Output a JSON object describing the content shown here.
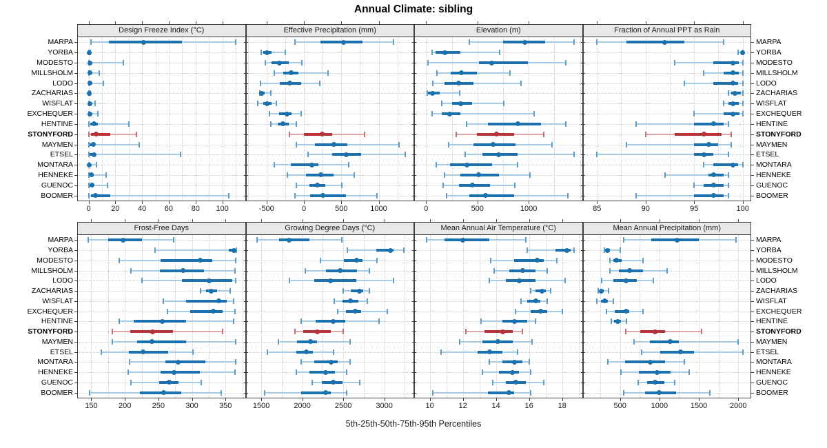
{
  "title": "Annual Climate: sibling",
  "caption": "5th-25th-50th-75th-95th Percentiles",
  "chart_data": {
    "type": "dotplot",
    "subtype": "trellis-percentile-interval-plot",
    "percentiles": [
      "5th",
      "25th",
      "50th",
      "75th",
      "95th"
    ],
    "stations": [
      "MARPA",
      "YORBA",
      "MODESTO",
      "MILLSHOLM",
      "LODO",
      "ZACHARIAS",
      "WISFLAT",
      "EXCHEQUER",
      "HENTINE",
      "STONYFORD",
      "MAYMEN",
      "ETSEL",
      "MONTARA",
      "HENNEKE",
      "GUENOC",
      "BOOMER"
    ],
    "highlight_station": "STONYFORD",
    "legend_position": "none",
    "grid": "dotted",
    "colors": {
      "series": "#1b71ad",
      "series_light": "#a9cbe4",
      "series_mid": "#5f9dc9",
      "highlight": "#b73337",
      "highlight_light": "#dda5a7",
      "highlight_mid": "#c66f72",
      "grid": "#c9c9c9",
      "panel_border": "#3f3f3f",
      "strip_bg": "#e8e8e8",
      "tick": "#3f3f3f",
      "text": "#1a1a1a"
    },
    "panels": [
      {
        "title": "Design Freeze Index (°C)",
        "grid_row": 0,
        "xlim": [
          -8,
          117
        ],
        "ticks": [
          0,
          20,
          40,
          60,
          80,
          100
        ],
        "minor_step": 10,
        "values": [
          [
            2,
            15,
            41,
            70,
            110
          ],
          [
            0,
            0,
            0.3,
            0.6,
            1.2
          ],
          [
            0,
            0.5,
            1,
            2.5,
            26
          ],
          [
            0,
            0.5,
            1,
            2.5,
            8
          ],
          [
            0,
            0.5,
            1,
            2,
            11
          ],
          [
            0,
            0,
            0.3,
            0.6,
            1.2
          ],
          [
            0,
            0.3,
            0.8,
            1.5,
            5
          ],
          [
            0,
            0.5,
            1,
            2,
            7
          ],
          [
            0.5,
            1.5,
            4,
            7,
            30
          ],
          [
            0.5,
            2,
            5.5,
            16,
            36
          ],
          [
            0.5,
            1,
            3.5,
            5,
            38
          ],
          [
            0.5,
            1,
            4,
            5.5,
            69
          ],
          [
            0,
            0,
            0.5,
            1.5,
            6
          ],
          [
            0,
            1,
            2,
            4,
            13
          ],
          [
            0,
            1,
            2.5,
            4,
            14
          ],
          [
            0.5,
            2,
            5,
            16,
            105
          ]
        ]
      },
      {
        "title": "Effective Precipitation (mm)",
        "grid_row": 0,
        "xlim": [
          -770,
          1465
        ],
        "ticks": [
          -500,
          0,
          500,
          1000
        ],
        "minor_step": 250,
        "values": [
          [
            -120,
            220,
            530,
            780,
            1200
          ],
          [
            -570,
            -540,
            -490,
            -430,
            -250
          ],
          [
            -520,
            -430,
            -330,
            -200,
            -30
          ],
          [
            -400,
            -280,
            -170,
            -70,
            320
          ],
          [
            -580,
            -325,
            -190,
            -40,
            210
          ],
          [
            -590,
            -575,
            -565,
            -530,
            -440
          ],
          [
            -620,
            -540,
            -490,
            -430,
            -370
          ],
          [
            -460,
            -335,
            -225,
            -165,
            -35
          ],
          [
            -440,
            -355,
            -285,
            -205,
            -105
          ],
          [
            -195,
            0,
            240,
            375,
            810
          ],
          [
            -105,
            145,
            400,
            580,
            1270
          ],
          [
            55,
            375,
            565,
            765,
            1350
          ],
          [
            -400,
            -175,
            110,
            190,
            600
          ],
          [
            -220,
            30,
            225,
            395,
            670
          ],
          [
            -100,
            70,
            175,
            285,
            510
          ],
          [
            -120,
            85,
            255,
            560,
            975
          ]
        ]
      },
      {
        "title": "Elevation (m)",
        "grid_row": 0,
        "xlim": [
          -110,
          1520
        ],
        "ticks": [
          0,
          500,
          1000
        ],
        "minor_step": 250,
        "values": [
          [
            420,
            750,
            960,
            1160,
            1445
          ],
          [
            60,
            90,
            180,
            335,
            720
          ],
          [
            15,
            515,
            640,
            990,
            1365
          ],
          [
            105,
            240,
            345,
            495,
            815
          ],
          [
            65,
            180,
            315,
            460,
            925
          ],
          [
            10,
            20,
            60,
            130,
            325
          ],
          [
            150,
            255,
            340,
            445,
            760
          ],
          [
            60,
            155,
            230,
            335,
            1050
          ],
          [
            395,
            605,
            895,
            1120,
            1365
          ],
          [
            290,
            495,
            685,
            855,
            1145
          ],
          [
            220,
            460,
            650,
            870,
            1225
          ],
          [
            380,
            550,
            710,
            890,
            1440
          ],
          [
            95,
            230,
            395,
            640,
            890
          ],
          [
            180,
            335,
            510,
            710,
            1010
          ],
          [
            165,
            320,
            450,
            620,
            865
          ],
          [
            200,
            420,
            580,
            855,
            1385
          ]
        ]
      },
      {
        "title": "Fraction of Annual PPT as Rain",
        "grid_row": 0,
        "xlim": [
          83.6,
          100.8
        ],
        "ticks": [
          85,
          90,
          95,
          100
        ],
        "minor_step": 2.5,
        "values": [
          [
            85,
            88,
            92,
            94,
            98
          ],
          [
            99.5,
            99.8,
            100,
            100,
            100
          ],
          [
            93,
            97,
            99,
            99.6,
            100
          ],
          [
            96,
            98,
            99,
            99.6,
            100
          ],
          [
            94,
            97,
            99,
            99.5,
            100
          ],
          [
            98.5,
            98.8,
            99.2,
            99.8,
            100
          ],
          [
            98,
            98.5,
            99,
            99.6,
            100
          ],
          [
            95,
            98,
            99,
            99.7,
            100
          ],
          [
            89,
            95,
            97,
            98,
            98.5
          ],
          [
            90,
            93,
            96,
            97.8,
            98.8
          ],
          [
            88,
            95,
            96.5,
            97.5,
            98.8
          ],
          [
            85,
            95,
            96,
            97,
            98.5
          ],
          [
            96,
            97,
            99,
            99.5,
            100
          ],
          [
            92,
            96.5,
            97,
            98,
            98.5
          ],
          [
            95,
            96,
            97,
            98,
            98.5
          ],
          [
            89,
            95,
            97,
            98,
            98.5
          ]
        ]
      },
      {
        "title": "Frost-Free Days",
        "grid_row": 1,
        "xlim": [
          130,
          379
        ],
        "ticks": [
          150,
          200,
          250,
          300,
          350
        ],
        "minor_step": 25,
        "values": [
          [
            145,
            175,
            197,
            225,
            273
          ],
          [
            245,
            355,
            363,
            365,
            366
          ],
          [
            192,
            253,
            312,
            330,
            365
          ],
          [
            209,
            252,
            287,
            318,
            364
          ],
          [
            225,
            285,
            326,
            360,
            365
          ],
          [
            313,
            321,
            329,
            337,
            357
          ],
          [
            257,
            291,
            340,
            352,
            362
          ],
          [
            263,
            297,
            332,
            346,
            364
          ],
          [
            192,
            213,
            256,
            291,
            362
          ],
          [
            181,
            208,
            241,
            272,
            346
          ],
          [
            181,
            218,
            240,
            291,
            365
          ],
          [
            165,
            206,
            227,
            265,
            301
          ],
          [
            207,
            260,
            279,
            320,
            365
          ],
          [
            205,
            253,
            273,
            312,
            364
          ],
          [
            209,
            251,
            266,
            280,
            314
          ],
          [
            147,
            222,
            258,
            284,
            344
          ]
        ]
      },
      {
        "title": "Growing Degree Days (°C)",
        "grid_row": 1,
        "xlim": [
          1318,
          3356
        ],
        "ticks": [
          1500,
          2000,
          2500,
          3000
        ],
        "minor_step": 250,
        "values": [
          [
            1450,
            1715,
            1840,
            2090,
            2485
          ],
          [
            2545,
            2900,
            3075,
            3110,
            3240
          ],
          [
            2220,
            2510,
            2665,
            2735,
            2910
          ],
          [
            2035,
            2285,
            2465,
            2665,
            2815
          ],
          [
            1840,
            2145,
            2340,
            2660,
            3115
          ],
          [
            2495,
            2590,
            2695,
            2740,
            2815
          ],
          [
            2390,
            2490,
            2590,
            2685,
            2790
          ],
          [
            2430,
            2530,
            2645,
            2715,
            3040
          ],
          [
            1990,
            2160,
            2375,
            2520,
            2935
          ],
          [
            1910,
            2010,
            2185,
            2345,
            2500
          ],
          [
            1705,
            1935,
            2100,
            2180,
            2585
          ],
          [
            1575,
            1925,
            2045,
            2125,
            2380
          ],
          [
            1990,
            2145,
            2355,
            2435,
            2585
          ],
          [
            1925,
            2090,
            2285,
            2395,
            2540
          ],
          [
            2120,
            2240,
            2380,
            2490,
            2700
          ],
          [
            1540,
            1990,
            2285,
            2345,
            2540
          ]
        ]
      },
      {
        "title": "Mean Annual Air Temperature (°C)",
        "grid_row": 1,
        "xlim": [
          9.1,
          19.2
        ],
        "ticks": [
          10,
          12,
          14,
          16,
          18
        ],
        "minor_step": 1,
        "values": [
          [
            9.8,
            10.9,
            12.0,
            13.6,
            15.8
          ],
          [
            15.9,
            17.6,
            18.3,
            18.5,
            18.7
          ],
          [
            13.7,
            15.1,
            16.5,
            16.9,
            17.7
          ],
          [
            13.9,
            14.8,
            15.6,
            16.4,
            17.1
          ],
          [
            13.6,
            14.6,
            15.4,
            16.4,
            18.2
          ],
          [
            16.1,
            16.4,
            16.8,
            17.0,
            17.3
          ],
          [
            15.5,
            15.9,
            16.4,
            16.7,
            17.1
          ],
          [
            15.2,
            16.1,
            16.7,
            17.1,
            18.0
          ],
          [
            13.1,
            14.4,
            15.1,
            15.9,
            16.4
          ],
          [
            12.2,
            13.3,
            14.4,
            15.0,
            15.6
          ],
          [
            11.8,
            13.2,
            14.1,
            15.0,
            16.2
          ],
          [
            10.7,
            12.9,
            13.6,
            14.4,
            15.3
          ],
          [
            13.6,
            14.4,
            15.1,
            15.6,
            16.0
          ],
          [
            13.2,
            14.2,
            15.0,
            15.4,
            16.1
          ],
          [
            13.8,
            14.6,
            15.2,
            15.8,
            16.9
          ],
          [
            10.2,
            13.5,
            14.8,
            15.1,
            16.1
          ]
        ]
      },
      {
        "title": "Mean Annual Precipitation (mm)",
        "grid_row": 1,
        "xlim": [
          35,
          2155
        ],
        "ticks": [
          500,
          1000,
          1500,
          2000
        ],
        "minor_step": 250,
        "values": [
          [
            545,
            895,
            1225,
            1500,
            1970
          ],
          [
            300,
            310,
            345,
            375,
            500
          ],
          [
            375,
            415,
            455,
            520,
            795
          ],
          [
            370,
            485,
            625,
            790,
            1095
          ],
          [
            270,
            415,
            580,
            715,
            925
          ],
          [
            225,
            240,
            260,
            290,
            355
          ],
          [
            205,
            260,
            310,
            345,
            415
          ],
          [
            325,
            435,
            580,
            615,
            790
          ],
          [
            385,
            425,
            470,
            510,
            585
          ],
          [
            570,
            760,
            945,
            1075,
            1535
          ],
          [
            675,
            875,
            1135,
            1250,
            2000
          ],
          [
            770,
            1010,
            1270,
            1440,
            2055
          ],
          [
            345,
            560,
            885,
            1075,
            1320
          ],
          [
            510,
            740,
            970,
            1145,
            1375
          ],
          [
            730,
            845,
            945,
            1060,
            1190
          ],
          [
            550,
            815,
            1000,
            1210,
            1635
          ]
        ]
      }
    ]
  }
}
